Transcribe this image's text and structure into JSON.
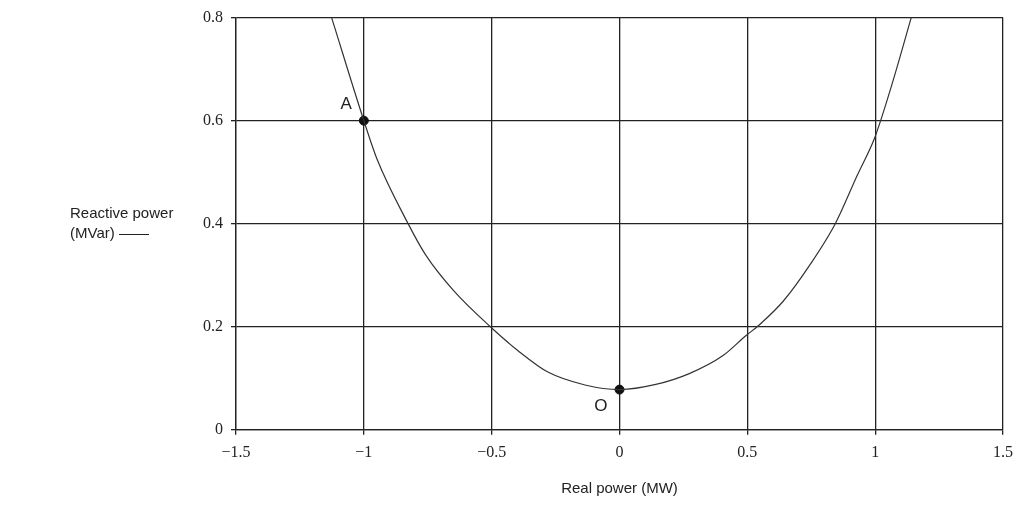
{
  "chart_data": {
    "type": "line",
    "xlabel": "Real power (MW)",
    "ylabel": "Reactive power (MVar) ——",
    "xlim": [
      -1.5,
      1.5
    ],
    "xticks": [
      -1.5,
      -1,
      -0.5,
      0,
      0.5,
      1,
      1.5
    ],
    "ylim": [
      0,
      0.8
    ],
    "yticks": [
      0,
      0.2,
      0.4,
      0.6,
      0.8
    ],
    "grid": true,
    "series": [
      {
        "color": "#333333",
        "x": [
          -1.126,
          -1.0,
          -0.949,
          -0.831,
          -0.759,
          -0.647,
          -0.503,
          -0.398,
          -0.28,
          -0.135,
          0,
          0.142,
          0.273,
          0.405,
          0.495,
          0.543,
          0.641,
          0.746,
          0.845,
          0.93,
          0.996,
          1.022,
          1.075,
          1.141
        ],
        "values": [
          0.8,
          0.6,
          0.526,
          0.404,
          0.34,
          0.269,
          0.199,
          0.154,
          0.112,
          0.087,
          0.078,
          0.088,
          0.109,
          0.144,
          0.183,
          0.202,
          0.25,
          0.321,
          0.401,
          0.494,
          0.564,
          0.601,
          0.686,
          0.8
        ]
      },
      {
        "type": "scatter",
        "color": "#111111",
        "x": [
          -1,
          0
        ],
        "values": [
          0.6,
          0.078
        ]
      }
    ],
    "annotations": [
      {
        "text": "A",
        "x": -1,
        "y": 0.6
      },
      {
        "text": "O",
        "x": 0,
        "y": 0.078
      }
    ]
  }
}
